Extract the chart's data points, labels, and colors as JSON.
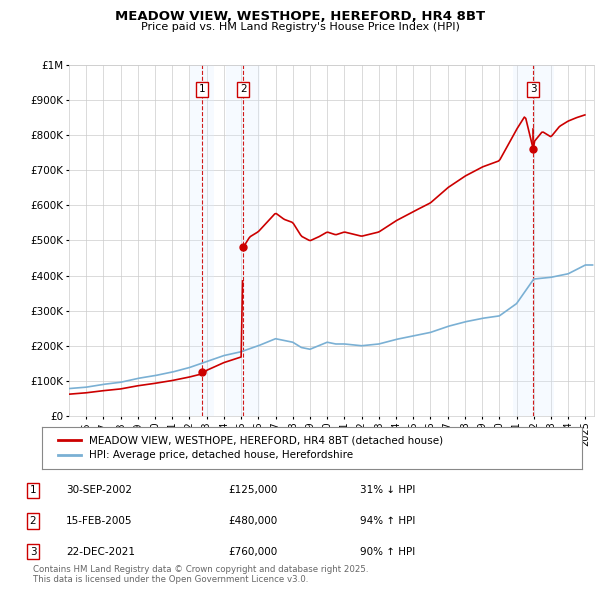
{
  "title": "MEADOW VIEW, WESTHOPE, HEREFORD, HR4 8BT",
  "subtitle": "Price paid vs. HM Land Registry's House Price Index (HPI)",
  "legend_property": "MEADOW VIEW, WESTHOPE, HEREFORD, HR4 8BT (detached house)",
  "legend_hpi": "HPI: Average price, detached house, Herefordshire",
  "footer": "Contains HM Land Registry data © Crown copyright and database right 2025.\nThis data is licensed under the Open Government Licence v3.0.",
  "sales": [
    {
      "num": 1,
      "date": "30-SEP-2002",
      "price": 125000,
      "pct": "31%",
      "dir": "↓",
      "x": 2002.75
    },
    {
      "num": 2,
      "date": "15-FEB-2005",
      "price": 480000,
      "pct": "94%",
      "dir": "↑",
      "x": 2005.12
    },
    {
      "num": 3,
      "date": "22-DEC-2021",
      "price": 760000,
      "pct": "90%",
      "dir": "↑",
      "x": 2021.97
    }
  ],
  "prop_color": "#cc0000",
  "hpi_color": "#7ab0d4",
  "sale_box_color": "#cc0000",
  "shade_color": "#ddeeff",
  "dashed_color": "#cc0000",
  "bg_color": "#ffffff",
  "grid_color": "#cccccc",
  "ylim": [
    0,
    1000000
  ],
  "xlim": [
    1995.0,
    2025.5
  ]
}
